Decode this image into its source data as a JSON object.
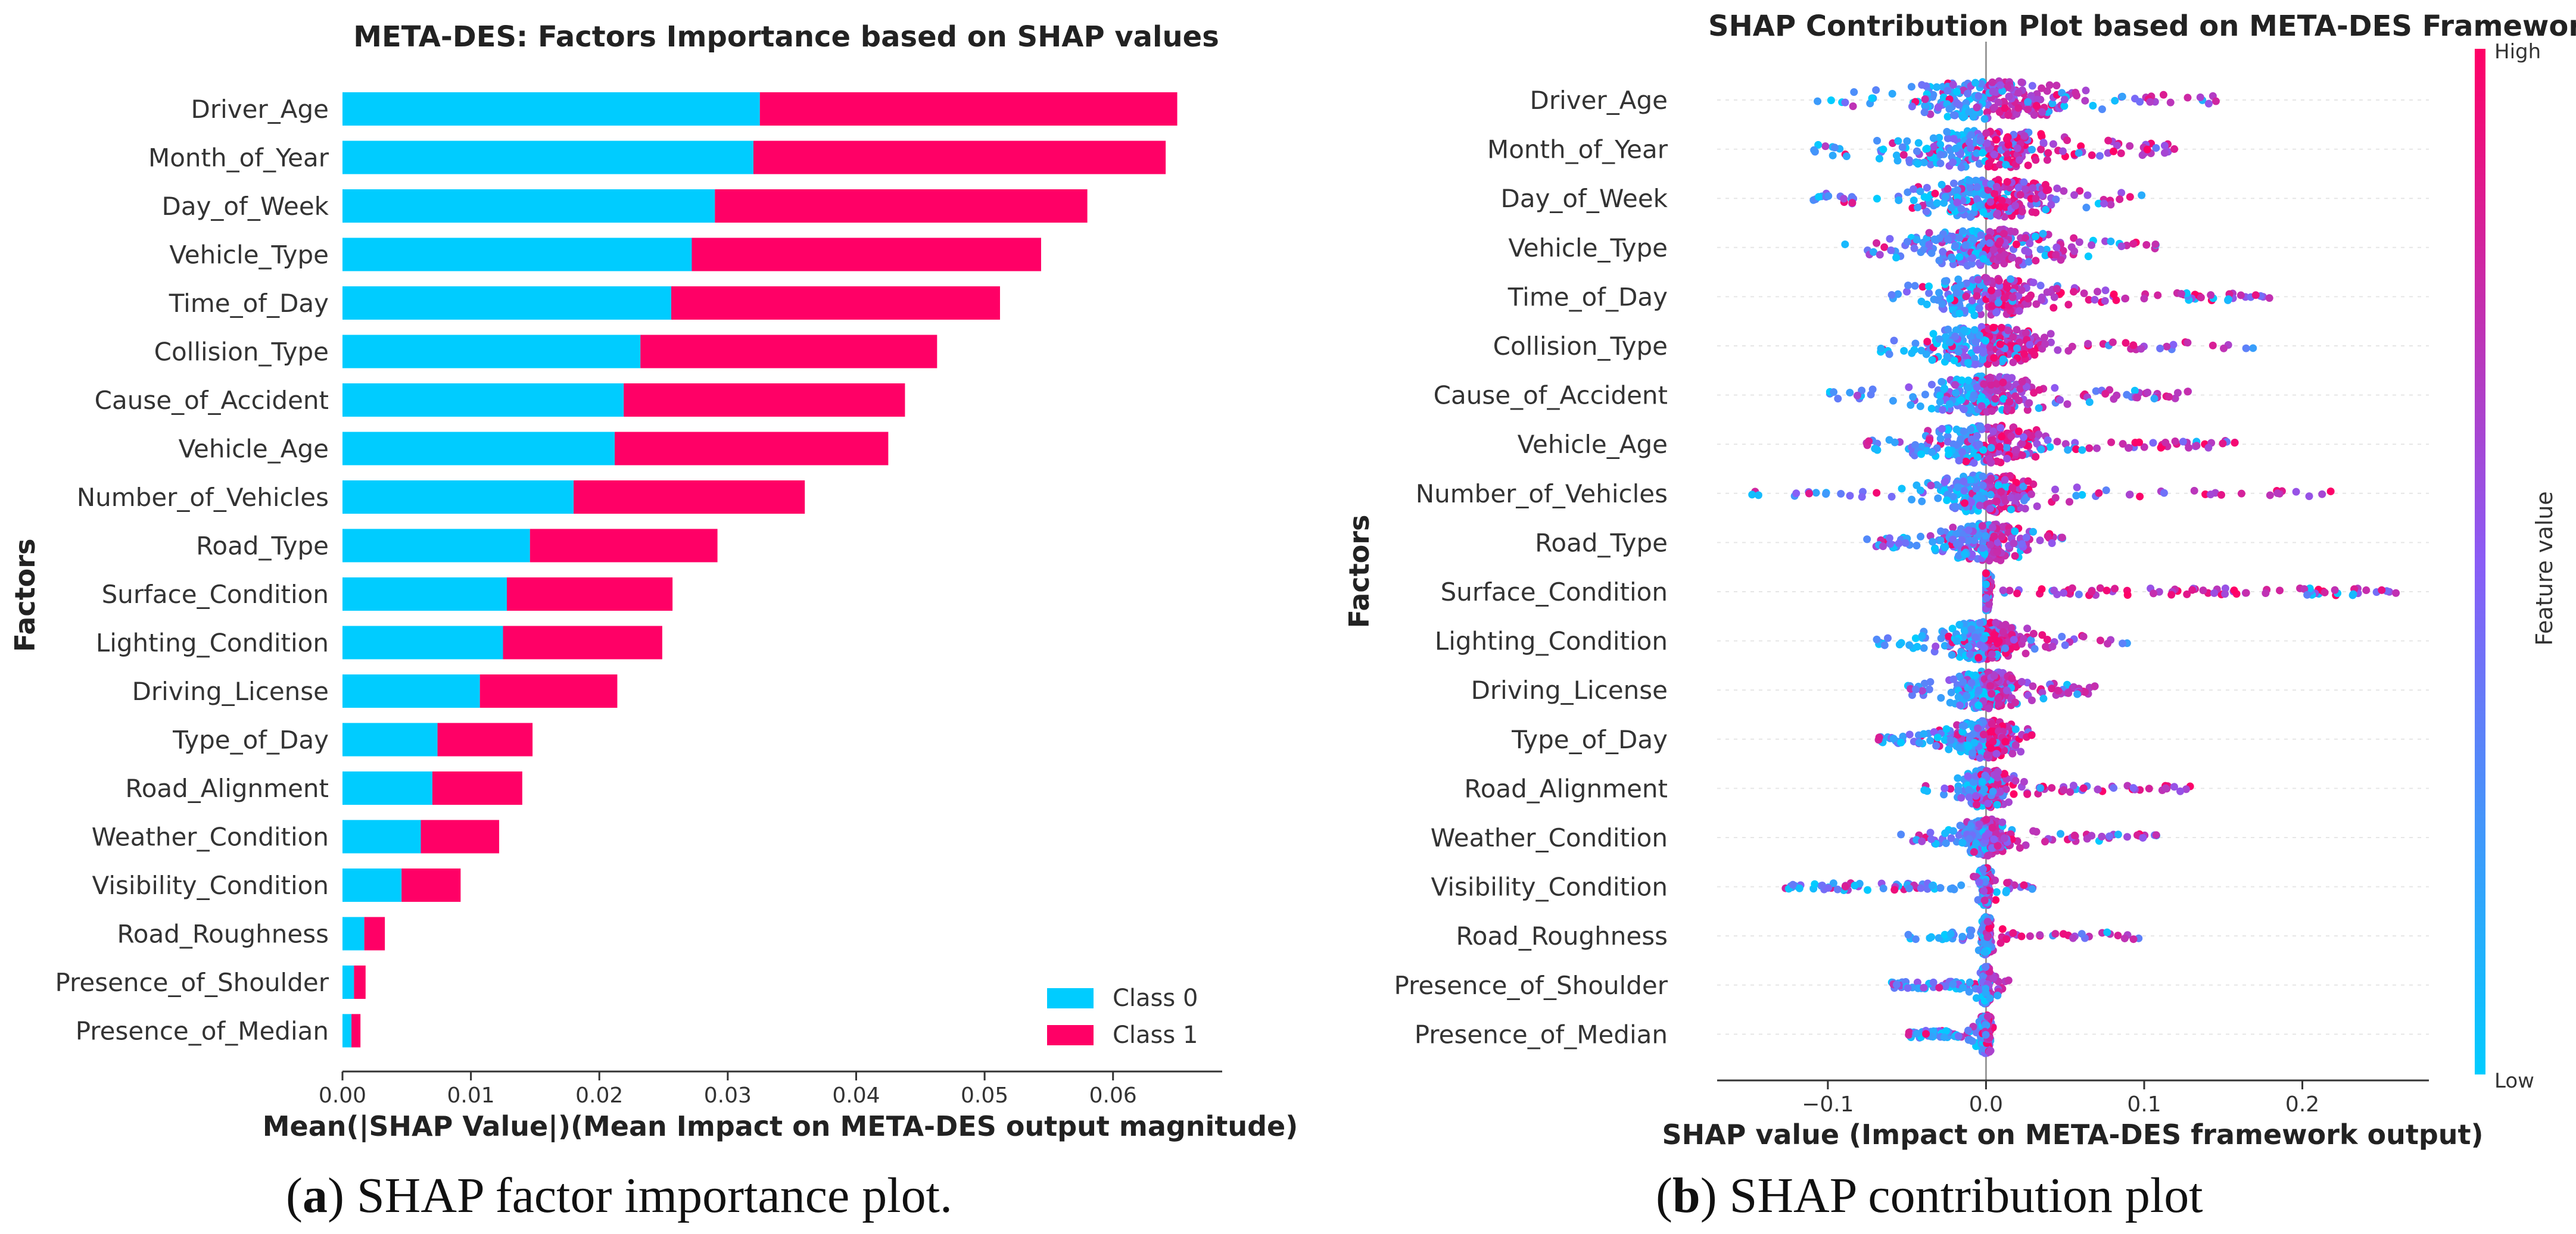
{
  "chart_data": [
    {
      "type": "bar",
      "stacked": true,
      "orientation": "horizontal",
      "title": "META-DES: Factors Importance based on SHAP values",
      "xlabel": "Mean(|SHAP Value|)(Mean Impact on META-DES output magnitude)",
      "ylabel": "Factors",
      "xlim": [
        0,
        0.0685
      ],
      "xticks": [
        "0.00",
        "0.01",
        "0.02",
        "0.03",
        "0.04",
        "0.05",
        "0.06"
      ],
      "legend_position": "bottom-right",
      "categories": [
        "Driver_Age",
        "Month_of_Year",
        "Day_of_Week",
        "Vehicle_Type",
        "Time_of_Day",
        "Collision_Type",
        "Cause_of_Accident",
        "Vehicle_Age",
        "Number_of_Vehicles",
        "Road_Type",
        "Surface_Condition",
        "Lighting_Condition",
        "Driving_License",
        "Type_of_Day",
        "Road_Alignment",
        "Weather_Condition",
        "Visibility_Condition",
        "Road_Roughness",
        "Presence_of_Shoulder",
        "Presence_of_Median"
      ],
      "series": [
        {
          "name": "Class 0",
          "color": "#00ccff",
          "values": [
            0.0325,
            0.032,
            0.029,
            0.0272,
            0.0256,
            0.0232,
            0.0219,
            0.0212,
            0.018,
            0.0146,
            0.0128,
            0.0125,
            0.0107,
            0.0074,
            0.007,
            0.0061,
            0.0046,
            0.0017,
            0.0009,
            0.0007
          ]
        },
        {
          "name": "Class 1",
          "color": "#ff0066",
          "values": [
            0.0325,
            0.0321,
            0.029,
            0.0272,
            0.0256,
            0.0231,
            0.0219,
            0.0213,
            0.018,
            0.0146,
            0.0129,
            0.0124,
            0.0107,
            0.0074,
            0.007,
            0.0061,
            0.0046,
            0.0016,
            0.0009,
            0.0007
          ]
        }
      ]
    },
    {
      "type": "scatter",
      "subtype": "beeswarm",
      "title": "SHAP Contribution Plot based on META-DES Framework",
      "xlabel": "SHAP value (Impact on META-DES framework output)",
      "ylabel": "Factors",
      "xlim": [
        -0.17,
        0.28
      ],
      "xticks": [
        "−0.1",
        "0.0",
        "0.1",
        "0.2"
      ],
      "colorbar": {
        "label": "Feature value",
        "high": "High",
        "low": "Low",
        "colors": [
          "#00ccff",
          "#8a5cf6",
          "#ff0066"
        ]
      },
      "categories": [
        "Driver_Age",
        "Month_of_Year",
        "Day_of_Week",
        "Vehicle_Type",
        "Time_of_Day",
        "Collision_Type",
        "Cause_of_Accident",
        "Vehicle_Age",
        "Number_of_Vehicles",
        "Road_Type",
        "Surface_Condition",
        "Lighting_Condition",
        "Driving_License",
        "Type_of_Day",
        "Road_Alignment",
        "Weather_Condition",
        "Visibility_Condition",
        "Road_Roughness",
        "Presence_of_Shoulder",
        "Presence_of_Median"
      ],
      "ranges": [
        {
          "min": -0.12,
          "max": 0.15,
          "core": 0.075
        },
        {
          "min": -0.11,
          "max": 0.12,
          "core": 0.07
        },
        {
          "min": -0.11,
          "max": 0.1,
          "core": 0.06
        },
        {
          "min": -0.09,
          "max": 0.11,
          "core": 0.06
        },
        {
          "min": -0.07,
          "max": 0.18,
          "core": 0.055
        },
        {
          "min": -0.07,
          "max": 0.17,
          "core": 0.055
        },
        {
          "min": -0.1,
          "max": 0.13,
          "core": 0.05
        },
        {
          "min": -0.08,
          "max": 0.16,
          "core": 0.05
        },
        {
          "min": -0.15,
          "max": 0.22,
          "core": 0.045
        },
        {
          "min": -0.08,
          "max": 0.05,
          "core": 0.035
        },
        {
          "min": 0.0,
          "max": 0.26,
          "core": 0.004
        },
        {
          "min": -0.07,
          "max": 0.09,
          "core": 0.035
        },
        {
          "min": -0.05,
          "max": 0.07,
          "core": 0.03
        },
        {
          "min": -0.07,
          "max": 0.03,
          "core": 0.025
        },
        {
          "min": -0.04,
          "max": 0.13,
          "core": 0.02
        },
        {
          "min": -0.06,
          "max": 0.11,
          "core": 0.02
        },
        {
          "min": -0.13,
          "max": 0.03,
          "core": 0.004
        },
        {
          "min": -0.05,
          "max": 0.1,
          "core": 0.004
        },
        {
          "min": -0.06,
          "max": 0.015,
          "core": 0.004
        },
        {
          "min": -0.05,
          "max": 0.005,
          "core": 0.004
        }
      ]
    }
  ],
  "captions": {
    "a_label": "a",
    "a_text": ") SHAP factor importance plot.",
    "b_label": "b",
    "b_text": ") SHAP contribution plot"
  }
}
